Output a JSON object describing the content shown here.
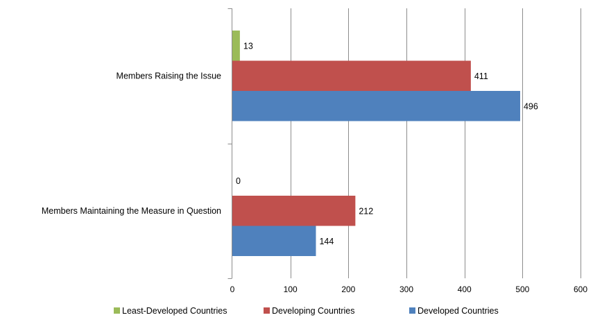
{
  "chart_data": {
    "type": "bar",
    "orientation": "horizontal",
    "categories": [
      "Members Raising the Issue",
      "Members Maintaining the Measure in Question"
    ],
    "series": [
      {
        "name": "Least-Developed Countries",
        "values": [
          13,
          0
        ],
        "color": "#9bbb59"
      },
      {
        "name": "Developing Countries",
        "values": [
          411,
          212
        ],
        "color": "#c0504d"
      },
      {
        "name": "Developed Countries",
        "values": [
          496,
          144
        ],
        "color": "#4f81bd"
      }
    ],
    "data_labels": [
      [
        "13",
        "0"
      ],
      [
        "411",
        "212"
      ],
      [
        "496",
        "144"
      ]
    ],
    "xlim": [
      0,
      600
    ],
    "xticks": [
      0,
      100,
      200,
      300,
      400,
      500,
      600
    ],
    "grid": true,
    "legend_position": "bottom"
  }
}
